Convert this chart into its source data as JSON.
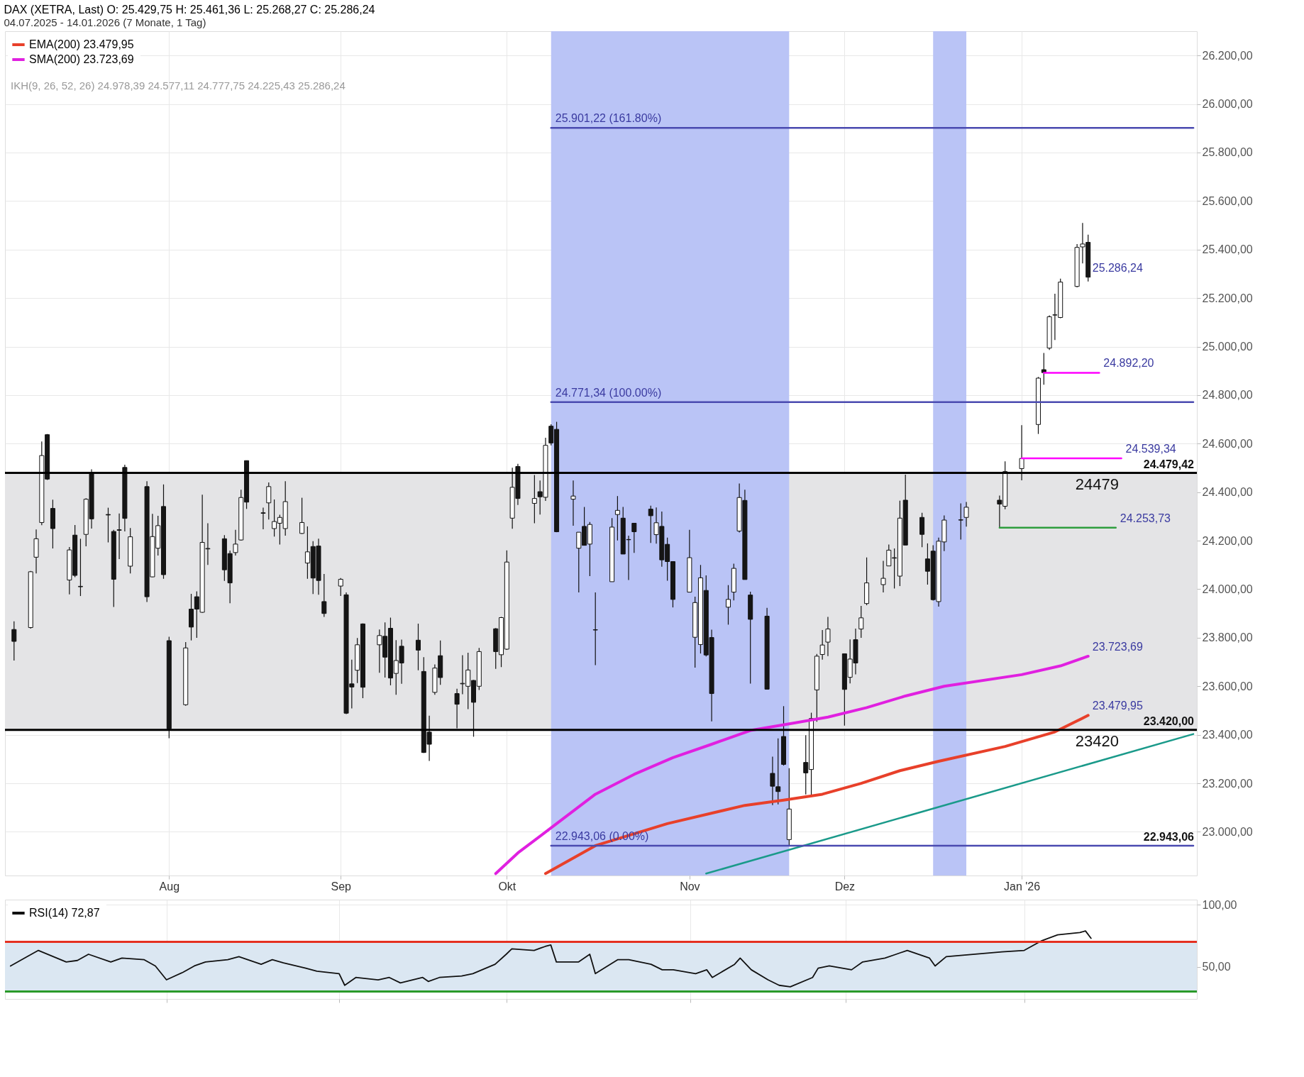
{
  "chart_data": [
    {
      "type": "candlestick",
      "title": "DAX (XETRA, Last)  O: 25.429,75  H: 25.461,36  L: 25.268,27  C: 25.286,24",
      "subtitle": "04.07.2025 - 14.01.2026  (7 Monate, 1 Tag)",
      "x": [
        "2025-07-04",
        "2025-07-07",
        "2025-07-08",
        "2025-07-09",
        "2025-07-10",
        "2025-07-11",
        "2025-07-14",
        "2025-07-15",
        "2025-07-16",
        "2025-07-17",
        "2025-07-18",
        "2025-07-21",
        "2025-07-22",
        "2025-07-23",
        "2025-07-24",
        "2025-07-25",
        "2025-07-28",
        "2025-07-29",
        "2025-07-30",
        "2025-07-31",
        "2025-08-01",
        "2025-08-04",
        "2025-08-05",
        "2025-08-06",
        "2025-08-07",
        "2025-08-08",
        "2025-08-11",
        "2025-08-12",
        "2025-08-13",
        "2025-08-14",
        "2025-08-15",
        "2025-08-18",
        "2025-08-19",
        "2025-08-20",
        "2025-08-21",
        "2025-08-22",
        "2025-08-25",
        "2025-08-26",
        "2025-08-27",
        "2025-08-28",
        "2025-08-29",
        "2025-09-01",
        "2025-09-02",
        "2025-09-03",
        "2025-09-04",
        "2025-09-05",
        "2025-09-08",
        "2025-09-09",
        "2025-09-10",
        "2025-09-11",
        "2025-09-12",
        "2025-09-15",
        "2025-09-16",
        "2025-09-17",
        "2025-09-18",
        "2025-09-19",
        "2025-09-22",
        "2025-09-23",
        "2025-09-24",
        "2025-09-25",
        "2025-09-26",
        "2025-09-29",
        "2025-09-30",
        "2025-10-01",
        "2025-10-02",
        "2025-10-03",
        "2025-10-06",
        "2025-10-07",
        "2025-10-08",
        "2025-10-09",
        "2025-10-10",
        "2025-10-13",
        "2025-10-14",
        "2025-10-15",
        "2025-10-16",
        "2025-10-17",
        "2025-10-20",
        "2025-10-21",
        "2025-10-22",
        "2025-10-23",
        "2025-10-24",
        "2025-10-27",
        "2025-10-28",
        "2025-10-29",
        "2025-10-30",
        "2025-10-31",
        "2025-11-03",
        "2025-11-04",
        "2025-11-05",
        "2025-11-06",
        "2025-11-07",
        "2025-11-10",
        "2025-11-11",
        "2025-11-12",
        "2025-11-13",
        "2025-11-14",
        "2025-11-17",
        "2025-11-18",
        "2025-11-19",
        "2025-11-20",
        "2025-11-21",
        "2025-11-24",
        "2025-11-25",
        "2025-11-26",
        "2025-11-27",
        "2025-11-28",
        "2025-12-01",
        "2025-12-02",
        "2025-12-03",
        "2025-12-04",
        "2025-12-05",
        "2025-12-08",
        "2025-12-09",
        "2025-12-10",
        "2025-12-11",
        "2025-12-12",
        "2025-12-15",
        "2025-12-16",
        "2025-12-17",
        "2025-12-18",
        "2025-12-19",
        "2025-12-22",
        "2025-12-23",
        "2025-12-29",
        "2025-12-30",
        "2026-01-02",
        "2026-01-05",
        "2026-01-06",
        "2026-01-07",
        "2026-01-08",
        "2026-01-09",
        "2026-01-12",
        "2026-01-13",
        "2026-01-14"
      ],
      "ohlc": [
        [
          23834,
          23868,
          23706,
          23785
        ],
        [
          23842,
          24075,
          23838,
          24072
        ],
        [
          24132,
          24246,
          24065,
          24208
        ],
        [
          24275,
          24609,
          24264,
          24551
        ],
        [
          24637,
          24640,
          24450,
          24454
        ],
        [
          24333,
          24369,
          24168,
          24250
        ],
        [
          24038,
          24174,
          23979,
          24162
        ],
        [
          24223,
          24265,
          24050,
          24057
        ],
        [
          24010,
          24208,
          23972,
          24012
        ],
        [
          24226,
          24375,
          24177,
          24371
        ],
        [
          24479,
          24494,
          24250,
          24290
        ],
        [
          24308,
          24336,
          24193,
          24306
        ],
        [
          24238,
          24245,
          23927,
          24041
        ],
        [
          24245,
          24312,
          24124,
          24243
        ],
        [
          24502,
          24513,
          24238,
          24292
        ],
        [
          24095,
          24252,
          24065,
          24216
        ],
        [
          24423,
          24445,
          23947,
          23969
        ],
        [
          24051,
          24311,
          24050,
          24217
        ],
        [
          24169,
          24303,
          24139,
          24262
        ],
        [
          24341,
          24432,
          24043,
          24060
        ],
        [
          23788,
          23804,
          23386,
          23425
        ],
        [
          23524,
          23782,
          23520,
          23758
        ],
        [
          23918,
          23981,
          23789,
          23844
        ],
        [
          23969,
          23991,
          23800,
          23918
        ],
        [
          23905,
          24390,
          23903,
          24193
        ],
        [
          24166,
          24272,
          24100,
          24168
        ],
        [
          24208,
          24223,
          24034,
          24080
        ],
        [
          24147,
          24159,
          23942,
          24026
        ],
        [
          24151,
          24245,
          24139,
          24186
        ],
        [
          24203,
          24410,
          24200,
          24378
        ],
        [
          24530,
          24530,
          24331,
          24359
        ],
        [
          24315,
          24336,
          24247,
          24313
        ],
        [
          24356,
          24440,
          24287,
          24423
        ],
        [
          24250,
          24370,
          24217,
          24279
        ],
        [
          24272,
          24307,
          24184,
          24296
        ],
        [
          24250,
          24445,
          24221,
          24361
        ],
        [
          24230,
          24377,
          24228,
          24275
        ],
        [
          24108,
          24259,
          24043,
          24154
        ],
        [
          24176,
          24198,
          23980,
          24046
        ],
        [
          24178,
          24208,
          23977,
          24036
        ],
        [
          23949,
          24063,
          23886,
          23900
        ],
        [
          24013,
          24046,
          23972,
          24041
        ],
        [
          23977,
          23987,
          23485,
          23489
        ],
        [
          23610,
          23710,
          23509,
          23597
        ],
        [
          23666,
          23799,
          23613,
          23771
        ],
        [
          23857,
          23859,
          23551,
          23596
        ],
        [
          23771,
          23834,
          23656,
          23809
        ],
        [
          23806,
          23863,
          23636,
          23720
        ],
        [
          23839,
          23883,
          23604,
          23634
        ],
        [
          23653,
          23790,
          23565,
          23706
        ],
        [
          23765,
          23792,
          23610,
          23696
        ],
        [
          23790,
          23858,
          23666,
          23749
        ],
        [
          23661,
          23720,
          23325,
          23327
        ],
        [
          23411,
          23479,
          23292,
          23361
        ],
        [
          23575,
          23690,
          23565,
          23675
        ],
        [
          23726,
          23789,
          23606,
          23636
        ],
        [
          23570,
          23590,
          23427,
          23526
        ],
        [
          23610,
          23728,
          23567,
          23612
        ],
        [
          23600,
          23738,
          23506,
          23667
        ],
        [
          23624,
          23626,
          23392,
          23534
        ],
        [
          23600,
          23758,
          23585,
          23743
        ],
        [
          23837,
          23840,
          23672,
          23743
        ],
        [
          23730,
          23886,
          23679,
          23883
        ],
        [
          23753,
          24160,
          23750,
          24112
        ],
        [
          24293,
          24501,
          24249,
          24420
        ],
        [
          24506,
          24517,
          24347,
          24374
        ],
        [
          24354,
          24471,
          24272,
          24374
        ],
        [
          24402,
          24448,
          24308,
          24381
        ],
        [
          24379,
          24624,
          24364,
          24593
        ],
        [
          24672,
          24680,
          24593,
          24603
        ],
        [
          24659,
          24690,
          24235,
          24237
        ],
        [
          24371,
          24448,
          24262,
          24384
        ],
        [
          24169,
          24235,
          23987,
          24235
        ],
        [
          24259,
          24339,
          24180,
          24181
        ],
        [
          24186,
          24277,
          24054,
          24267
        ],
        [
          23833,
          23987,
          23687,
          23832
        ],
        [
          24031,
          24293,
          24031,
          24256
        ],
        [
          24308,
          24384,
          24201,
          24325
        ],
        [
          24293,
          24339,
          24145,
          24145
        ],
        [
          24205,
          24221,
          24038,
          24204
        ],
        [
          24272,
          24272,
          24150,
          24237
        ],
        [
          24330,
          24344,
          24191,
          24303
        ],
        [
          24225,
          24337,
          24188,
          24274
        ],
        [
          24259,
          24320,
          24093,
          24121
        ],
        [
          24185,
          24213,
          24035,
          24114
        ],
        [
          24114,
          24114,
          23925,
          23958
        ],
        [
          23988,
          24245,
          23988,
          24130
        ],
        [
          23802,
          23969,
          23677,
          23945
        ],
        [
          23772,
          24100,
          23735,
          24047
        ],
        [
          23995,
          24057,
          23723,
          23729
        ],
        [
          23801,
          23833,
          23455,
          23570
        ],
        [
          23926,
          24017,
          23854,
          23958
        ],
        [
          23988,
          24105,
          23954,
          24086
        ],
        [
          24240,
          24436,
          24234,
          24378
        ],
        [
          24366,
          24410,
          24040,
          24040
        ],
        [
          23976,
          23990,
          23611,
          23876
        ],
        [
          23889,
          23923,
          23588,
          23588
        ],
        [
          23241,
          23310,
          23110,
          23188
        ],
        [
          23186,
          23385,
          23113,
          23166
        ],
        [
          23393,
          23518,
          23273,
          23278
        ],
        [
          22968,
          23262,
          22943,
          23094
        ],
        [
          23286,
          23398,
          23154,
          23243
        ],
        [
          23257,
          23491,
          23150,
          23467
        ],
        [
          23585,
          23733,
          23454,
          23724
        ],
        [
          23731,
          23832,
          23710,
          23770
        ],
        [
          23782,
          23886,
          23724,
          23836
        ],
        [
          23734,
          23734,
          23438,
          23587
        ],
        [
          23637,
          23793,
          23612,
          23712
        ],
        [
          23792,
          23838,
          23649,
          23696
        ],
        [
          23836,
          23931,
          23800,
          23882
        ],
        [
          23941,
          24131,
          23934,
          24026
        ],
        [
          24019,
          24117,
          23987,
          24045
        ],
        [
          24096,
          24184,
          24096,
          24161
        ],
        [
          24128,
          24168,
          24003,
          24130
        ],
        [
          24054,
          24365,
          24013,
          24293
        ],
        [
          24367,
          24472,
          24182,
          24182
        ],
        [
          24296,
          24315,
          24173,
          24226
        ],
        [
          24125,
          24189,
          24019,
          24074
        ],
        [
          24157,
          24181,
          23953,
          23957
        ],
        [
          23949,
          24213,
          23928,
          24198
        ],
        [
          24195,
          24304,
          24157,
          24285
        ],
        [
          24286,
          24354,
          24205,
          24285
        ],
        [
          24296,
          24360,
          24258,
          24338
        ],
        [
          24367,
          24386,
          24253,
          24351
        ],
        [
          24342,
          24527,
          24330,
          24485
        ],
        [
          24497,
          24676,
          24449,
          24539
        ],
        [
          24679,
          24875,
          24640,
          24870
        ],
        [
          24905,
          24974,
          24843,
          24893
        ],
        [
          24994,
          25129,
          24986,
          25123
        ],
        [
          25130,
          25218,
          25027,
          25131
        ],
        [
          25120,
          25280,
          25117,
          25266
        ],
        [
          25248,
          25423,
          25244,
          25409
        ],
        [
          25411,
          25510,
          25343,
          25423
        ],
        [
          25429.75,
          25461.36,
          25268.27,
          25286.24
        ]
      ],
      "series": [
        {
          "type": "line",
          "name": "EMA(200)  23.479,95",
          "color": "#e8402a",
          "x": [
            "2025-10-08",
            "2025-10-17",
            "2025-10-30",
            "2025-11-13",
            "2025-11-20",
            "2025-11-27",
            "2025-12-04",
            "2025-12-11",
            "2025-12-18",
            "2025-12-30",
            "2026-01-08",
            "2026-01-14"
          ],
          "values": [
            22828,
            22943,
            23034,
            23109,
            23131,
            23155,
            23200,
            23252,
            23291,
            23352,
            23412,
            23479.95
          ]
        },
        {
          "type": "line",
          "name": "SMA(200)  23.723,69",
          "color": "#e020e0",
          "x": [
            "2025-09-29",
            "2025-10-03",
            "2025-10-10",
            "2025-10-17",
            "2025-10-24",
            "2025-10-31",
            "2025-11-07",
            "2025-11-14",
            "2025-11-21",
            "2025-11-28",
            "2025-12-05",
            "2025-12-12",
            "2025-12-19",
            "2026-01-02",
            "2026-01-09",
            "2026-01-14"
          ],
          "values": [
            22828,
            22913,
            23034,
            23155,
            23237,
            23306,
            23361,
            23418,
            23445,
            23473,
            23512,
            23560,
            23600,
            23648,
            23684,
            23723.69
          ]
        },
        {
          "type": "line",
          "color": "#1a9a8a",
          "x": [
            "2025-11-06",
            "2026-02-02"
          ],
          "values": [
            22828,
            23403
          ]
        },
        {
          "type": "line",
          "color": "#4a4ab0",
          "x": [
            "2025-10-09",
            "2026-02-02"
          ],
          "values": [
            25901.22,
            25901.22
          ]
        },
        {
          "type": "line",
          "color": "#4a4ab0",
          "x": [
            "2025-10-09",
            "2026-02-02"
          ],
          "values": [
            24771.34,
            24771.34
          ]
        },
        {
          "type": "line",
          "color": "#4a4ab0",
          "x": [
            "2025-10-09",
            "2026-02-02"
          ],
          "values": [
            22943.06,
            22943.06
          ]
        },
        {
          "type": "line",
          "color": "#ff00ff",
          "x": [
            "2026-01-06",
            "2026-01-16"
          ],
          "values": [
            24892.2,
            24892.2
          ]
        },
        {
          "type": "line",
          "color": "#ff00ff",
          "x": [
            "2026-01-02",
            "2026-01-20"
          ],
          "values": [
            24539.34,
            24539.34
          ]
        },
        {
          "type": "line",
          "color": "#2e9e3e",
          "x": [
            "2025-12-29",
            "2026-01-19"
          ],
          "values": [
            24253.73,
            24253.73
          ]
        }
      ],
      "xlim": [
        "2025-07-03",
        "2026-02-02"
      ],
      "xticks": [
        {
          "value": "2025-08-01",
          "label": "Aug"
        },
        {
          "value": "2025-09-01",
          "label": "Sep"
        },
        {
          "value": "2025-10-01",
          "label": "Okt"
        },
        {
          "value": "2025-11-03",
          "label": "Nov"
        },
        {
          "value": "2025-12-01",
          "label": "Dez"
        },
        {
          "value": "2026-01-02",
          "label": "Jan '26"
        }
      ],
      "ylim": [
        22820,
        26300
      ],
      "yticks": [
        {
          "value": 23000,
          "label": "23.000,00"
        },
        {
          "value": 23200,
          "label": "23.200,00"
        },
        {
          "value": 23400,
          "label": "23.400,00"
        },
        {
          "value": 23600,
          "label": "23.600,00"
        },
        {
          "value": 23800,
          "label": "23.800,00"
        },
        {
          "value": 24000,
          "label": "24.000,00"
        },
        {
          "value": 24200,
          "label": "24.200,00"
        },
        {
          "value": 24400,
          "label": "24.400,00"
        },
        {
          "value": 24600,
          "label": "24.600,00"
        },
        {
          "value": 24800,
          "label": "24.800,00"
        },
        {
          "value": 25000,
          "label": "25.000,00"
        },
        {
          "value": 25200,
          "label": "25.200,00"
        },
        {
          "value": 25400,
          "label": "25.400,00"
        },
        {
          "value": 25600,
          "label": "25.600,00"
        },
        {
          "value": 25800,
          "label": "25.800,00"
        },
        {
          "value": 26000,
          "label": "26.000,00"
        },
        {
          "value": 26200,
          "label": "26.200,00"
        }
      ],
      "grid": true,
      "legend": "top left",
      "bands": [
        {
          "axis": "y",
          "from": 23420,
          "to": 24479.42,
          "color": "#e4e4e6"
        },
        {
          "axis": "x",
          "from": "2025-10-09",
          "to": "2025-11-21",
          "color": "#bac4f6"
        },
        {
          "axis": "x",
          "from": "2025-12-17",
          "to": "2025-12-23",
          "color": "#bac4f6"
        }
      ],
      "ref_lines": [
        {
          "axis": "y",
          "value": 24479.42,
          "label": "24479",
          "color": "#000000"
        },
        {
          "axis": "y",
          "value": 23420,
          "label": "23420",
          "color": "#000000"
        }
      ],
      "annotations": [
        "IKH(9, 26, 52, 26)  24.978,39  24.577,11  24.777,75  24.225,43  25.286,24",
        {
          "text": "25.901,22 (161.80%)",
          "x": "2025-10-09",
          "y": 25901.22
        },
        {
          "text": "24.771,34 (100.00%)",
          "x": "2025-10-09",
          "y": 24771.34
        },
        {
          "text": "22.943,06 (0.00%)",
          "x": "2025-10-09",
          "y": 22943.06
        },
        {
          "text": "25.286,24",
          "x": "2026-01-14",
          "y": 25286.24
        },
        {
          "text": "24.892,20",
          "x": "2026-01-16",
          "y": 24892.2
        },
        {
          "text": "24.539,34",
          "x": "2026-01-20",
          "y": 24539.34
        },
        {
          "text": "24.479,42",
          "y": 24479.42
        },
        {
          "text": "24.253,73",
          "x": "2026-01-19",
          "y": 24253.73
        },
        {
          "text": "23.723,69",
          "x": "2026-01-14",
          "y": 23723.69
        },
        {
          "text": "23.479,95",
          "x": "2026-01-14",
          "y": 23479.95
        },
        {
          "text": "23.420,00",
          "y": 23420
        },
        {
          "text": "22.943,06",
          "y": 22943.06
        }
      ]
    },
    {
      "type": "line",
      "x": [
        "2025-07-04",
        "2025-07-07",
        "2025-07-09",
        "2025-07-11",
        "2025-07-14",
        "2025-07-16",
        "2025-07-18",
        "2025-07-22",
        "2025-07-24",
        "2025-07-28",
        "2025-07-30",
        "2025-08-01",
        "2025-08-04",
        "2025-08-06",
        "2025-08-08",
        "2025-08-12",
        "2025-08-14",
        "2025-08-18",
        "2025-08-20",
        "2025-08-22",
        "2025-08-26",
        "2025-08-28",
        "2025-09-01",
        "2025-09-02",
        "2025-09-04",
        "2025-09-08",
        "2025-09-10",
        "2025-09-12",
        "2025-09-16",
        "2025-09-17",
        "2025-09-19",
        "2025-09-23",
        "2025-09-25",
        "2025-09-29",
        "2025-10-01",
        "2025-10-02",
        "2025-10-06",
        "2025-10-08",
        "2025-10-09",
        "2025-10-10",
        "2025-10-14",
        "2025-10-16",
        "2025-10-17",
        "2025-10-21",
        "2025-10-23",
        "2025-10-27",
        "2025-10-29",
        "2025-10-31",
        "2025-11-04",
        "2025-11-06",
        "2025-11-07",
        "2025-11-11",
        "2025-11-12",
        "2025-11-14",
        "2025-11-17",
        "2025-11-19",
        "2025-11-21",
        "2025-11-25",
        "2025-11-26",
        "2025-11-28",
        "2025-12-02",
        "2025-12-04",
        "2025-12-08",
        "2025-12-10",
        "2025-12-12",
        "2025-12-16",
        "2025-12-17",
        "2025-12-19",
        "2025-12-29",
        "2026-01-02",
        "2026-01-05",
        "2026-01-08",
        "2026-01-12",
        "2026-01-13",
        "2026-01-14"
      ],
      "series": [
        {
          "name": "RSI(14)  72,87",
          "color": "#111111",
          "values": [
            50.6,
            58.1,
            63.1,
            59.4,
            53.8,
            55,
            60,
            53.8,
            56.9,
            55.6,
            50.6,
            39.4,
            45.6,
            50.6,
            53.8,
            55.6,
            58.1,
            51.9,
            55.6,
            53.1,
            48.8,
            46.3,
            44.4,
            35,
            41.3,
            39.4,
            41.3,
            36.9,
            41.3,
            38.1,
            41.3,
            42.5,
            44.4,
            51.9,
            60,
            64.4,
            63.1,
            66.3,
            67.5,
            53.8,
            53.8,
            60,
            44.4,
            55.6,
            55.6,
            51.9,
            47.5,
            47.5,
            44.4,
            47.5,
            41.3,
            51.9,
            56.9,
            47.5,
            39.4,
            35,
            33.8,
            41.3,
            48.8,
            50.6,
            47.5,
            53.8,
            56.9,
            60,
            63.1,
            56.9,
            50.6,
            58.1,
            61.9,
            63.1,
            70.6,
            75.6,
            77.5,
            78.8,
            72.87
          ]
        }
      ],
      "xlim": [
        "2025-07-03",
        "2026-02-02"
      ],
      "xticks": [
        {
          "value": "2025-08-01",
          "label": null
        },
        {
          "value": "2025-09-01",
          "label": null
        },
        {
          "value": "2025-10-01",
          "label": null
        },
        {
          "value": "2025-11-03",
          "label": null
        },
        {
          "value": "2025-12-01",
          "label": null
        },
        {
          "value": "2026-01-02",
          "label": null
        }
      ],
      "ylim": [
        24,
        104
      ],
      "yticks": [
        {
          "value": 100,
          "label": "100,00"
        },
        {
          "value": 50,
          "label": "50,00"
        }
      ],
      "tick_labels": "y",
      "grid": true,
      "legend": "top left",
      "bands": [
        {
          "axis": "y",
          "from": 30,
          "to": 70,
          "color": "#dbe7f2"
        }
      ],
      "ref_lines": [
        {
          "axis": "y",
          "value": 70,
          "color": "#e53020"
        },
        {
          "axis": "y",
          "value": 30,
          "color": "#2a9a2a"
        }
      ]
    }
  ]
}
